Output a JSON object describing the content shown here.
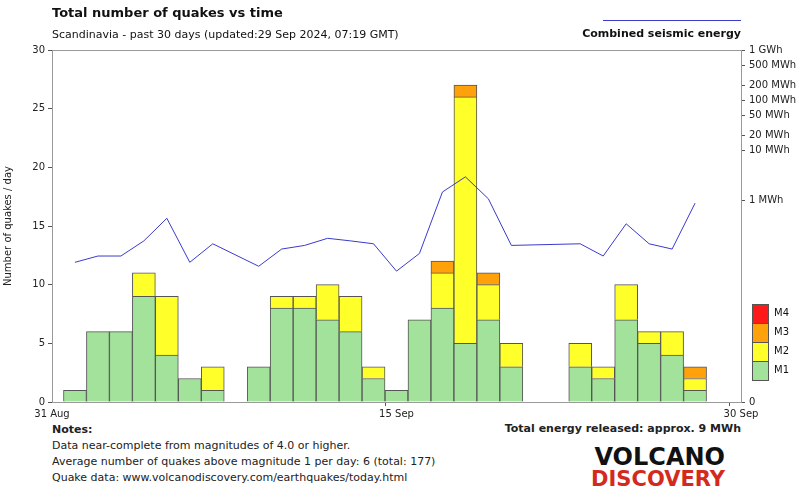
{
  "chart_data": {
    "type": "bar",
    "title": "Total number of quakes vs time",
    "subtitle": "Scandinavia - past 30 days (updated:29 Sep 2024, 07:19 GMT)",
    "ylabel": "Number of quakes / day",
    "categories": [
      "31 Aug",
      null,
      null,
      null,
      null,
      null,
      null,
      null,
      null,
      null,
      null,
      null,
      null,
      null,
      null,
      "15 Sep",
      null,
      null,
      null,
      null,
      null,
      null,
      null,
      null,
      null,
      null,
      null,
      null,
      null,
      null,
      "30 Sep"
    ],
    "series": [
      {
        "name": "M1",
        "color": "#a2e29a",
        "values": [
          0,
          1,
          6,
          6,
          9,
          4,
          2,
          1,
          0,
          3,
          8,
          8,
          7,
          6,
          2,
          1,
          7,
          8,
          5,
          7,
          3,
          0,
          0,
          3,
          2,
          7,
          5,
          4,
          1,
          0,
          0
        ]
      },
      {
        "name": "M2",
        "color": "#ffff2a",
        "values": [
          0,
          0,
          0,
          0,
          2,
          5,
          0,
          2,
          0,
          0,
          1,
          1,
          3,
          3,
          1,
          0,
          0,
          3,
          21,
          3,
          2,
          0,
          0,
          2,
          1,
          3,
          1,
          2,
          1,
          0,
          0
        ]
      },
      {
        "name": "M3",
        "color": "#ffa10a",
        "values": [
          0,
          0,
          0,
          0,
          0,
          0,
          0,
          0,
          0,
          0,
          0,
          0,
          0,
          0,
          0,
          0,
          0,
          1,
          1,
          1,
          0,
          0,
          0,
          0,
          0,
          0,
          0,
          0,
          1,
          0,
          0
        ]
      },
      {
        "name": "M4",
        "color": "#ff1a1a",
        "values": [
          0,
          0,
          0,
          0,
          0,
          0,
          0,
          0,
          0,
          0,
          0,
          0,
          0,
          0,
          0,
          0,
          0,
          0,
          0,
          0,
          0,
          0,
          0,
          0,
          0,
          0,
          0,
          0,
          0,
          0,
          0
        ]
      },
      {
        "name": "Combined seismic energy",
        "type": "line",
        "axis": "y2",
        "color": "#3a3acc",
        "marker": "none",
        "values": [
          null,
          0.06,
          0.08,
          0.08,
          0.16,
          0.45,
          0.06,
          0.14,
          null,
          0.05,
          0.11,
          0.13,
          0.18,
          0.16,
          0.14,
          0.04,
          0.09,
          1.5,
          3,
          1.1,
          0.13,
          null,
          null,
          0.14,
          0.08,
          0.35,
          0.14,
          0.11,
          0.9,
          null,
          null
        ]
      }
    ],
    "stacked": true,
    "ylim": [
      0,
      30
    ],
    "yticks": [
      0,
      5,
      10,
      15,
      20,
      25,
      30
    ],
    "log": "y2",
    "y2lim": [
      0.0001,
      1000
    ],
    "y2ticks": [
      {
        "value": 0.0001,
        "label": "0"
      },
      {
        "value": 1,
        "label": "1 MWh"
      },
      {
        "value": 10,
        "label": "10 MWh"
      },
      {
        "value": 20,
        "label": "20 MWh"
      },
      {
        "value": 50,
        "label": "50 MWh"
      },
      {
        "value": 100,
        "label": "100 MWh"
      },
      {
        "value": 200,
        "label": "200 MWh"
      },
      {
        "value": 500,
        "label": "500 MWh"
      },
      {
        "value": 1000,
        "label": "1 GWh"
      }
    ],
    "grid": false,
    "legend": "right",
    "annotation": "Total energy released: approx. 9 MWh",
    "notes_title": "Notes:",
    "notes": [
      "Data near-complete from magnitudes of 4.0 or higher.",
      "Average number of quakes above magnitude 1 per day: 6 (total: 177)",
      "Quake data: www.volcanodiscovery.com/earthquakes/today.html"
    ],
    "logo": [
      "VOLCANO",
      "DISCOVERY"
    ]
  }
}
